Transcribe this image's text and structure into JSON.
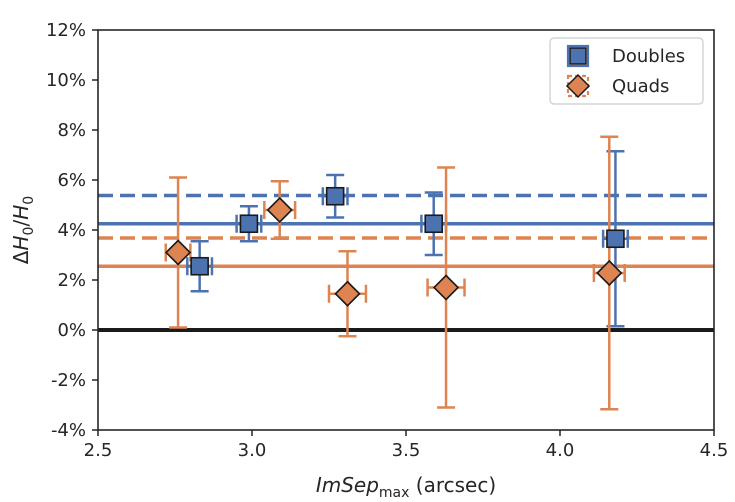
{
  "chart_data": {
    "type": "scatter",
    "title": "",
    "xlabel": "ImSep_max (arcsec)",
    "ylabel": "ΔH0/H0",
    "xlim": [
      2.5,
      4.5
    ],
    "ylim": [
      -4,
      12
    ],
    "xticks": [
      "2.5",
      "3.0",
      "3.5",
      "4.0",
      "4.5"
    ],
    "xtick_values": [
      2.5,
      3.0,
      3.5,
      4.0,
      4.5
    ],
    "yticks": [
      "-4%",
      "-2%",
      "0%",
      "2%",
      "4%",
      "6%",
      "8%",
      "10%",
      "12%"
    ],
    "ytick_values": [
      -4,
      -2,
      0,
      2,
      4,
      6,
      8,
      10,
      12
    ],
    "zero_line": 0,
    "legend_position": "top-right",
    "series": [
      {
        "name": "Doubles",
        "color": "#4c72b0",
        "marker": "square",
        "mean_solid": 4.25,
        "mean_dashed": 5.38,
        "points": [
          {
            "x": 2.83,
            "y": 2.55,
            "xerr": 0.04,
            "yerr": 1.0
          },
          {
            "x": 2.99,
            "y": 4.25,
            "xerr": 0.04,
            "yerr": 0.7
          },
          {
            "x": 3.27,
            "y": 5.35,
            "xerr": 0.04,
            "yerr": 0.85
          },
          {
            "x": 3.59,
            "y": 4.25,
            "xerr": 0.04,
            "yerr": 1.25
          },
          {
            "x": 4.18,
            "y": 3.65,
            "xerr": 0.04,
            "yerr": 3.5
          }
        ]
      },
      {
        "name": "Quads",
        "color": "#dd8452",
        "marker": "diamond",
        "mean_solid": 2.55,
        "mean_dashed": 3.68,
        "points": [
          {
            "x": 2.76,
            "y": 3.1,
            "xerr": 0.04,
            "yerr": 3.0
          },
          {
            "x": 3.09,
            "y": 4.8,
            "xerr": 0.05,
            "yerr": 1.15
          },
          {
            "x": 3.31,
            "y": 1.45,
            "xerr": 0.06,
            "yerr": 1.7
          },
          {
            "x": 3.63,
            "y": 1.7,
            "xerr": 0.06,
            "yerr": 4.8
          },
          {
            "x": 4.16,
            "y": 2.28,
            "xerr": 0.05,
            "yerr": 5.45
          }
        ]
      }
    ]
  }
}
